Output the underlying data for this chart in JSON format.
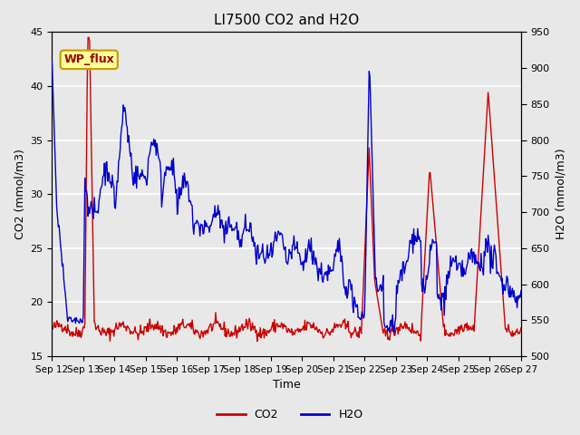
{
  "title": "LI7500 CO2 and H2O",
  "xlabel": "Time",
  "ylabel_left": "CO2 (mmol/m3)",
  "ylabel_right": "H2O (mmol/m3)",
  "ylim_left": [
    15,
    45
  ],
  "ylim_right": [
    500,
    950
  ],
  "background_color": "#e8e8e8",
  "co2_color": "#cc0000",
  "h2o_color": "#0000cc",
  "legend_label_co2": "CO2",
  "legend_label_h2o": "H2O",
  "annotation_text": "WP_flux",
  "annotation_bg": "#ffff99",
  "annotation_border": "#cc9900",
  "x_tick_labels": [
    "Sep 12",
    "Sep 13",
    "Sep 14",
    "Sep 15",
    "Sep 16",
    "Sep 17",
    "Sep 18",
    "Sep 19",
    "Sep 20",
    "Sep 21",
    "Sep 22",
    "Sep 23",
    "Sep 24",
    "Sep 25",
    "Sep 26",
    "Sep 27"
  ],
  "x_tick_positions": [
    0,
    1,
    2,
    3,
    4,
    5,
    6,
    7,
    8,
    9,
    10,
    11,
    12,
    13,
    14,
    15
  ]
}
